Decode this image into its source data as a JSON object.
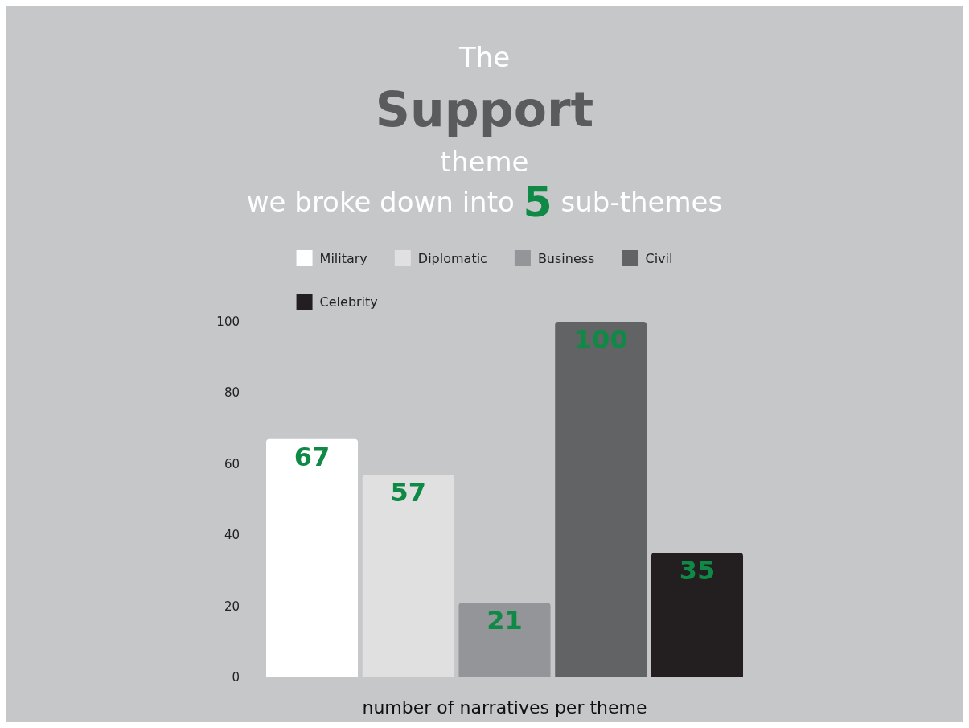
{
  "chart_data": {
    "type": "bar",
    "title": "The Support theme",
    "subtitle": "we broke down into 5 sub-themes",
    "xlabel": "number of narratives per theme",
    "categories": [
      null
    ],
    "series": [
      {
        "name": "Military",
        "color": "#ffffff",
        "values": [
          67
        ]
      },
      {
        "name": "Diplomatic",
        "color": "#e0e0e0",
        "values": [
          57
        ]
      },
      {
        "name": "Business",
        "color": "#939598",
        "values": [
          21
        ]
      },
      {
        "name": "Civil",
        "color": "#626365",
        "values": [
          100
        ]
      },
      {
        "name": "Celebrity",
        "color": "#231f20",
        "values": [
          35
        ]
      }
    ],
    "ylim": [
      0,
      100
    ],
    "yticks": [
      0,
      20,
      40,
      60,
      80,
      100
    ],
    "grid": false,
    "legend": "top",
    "data_labels": true
  }
}
